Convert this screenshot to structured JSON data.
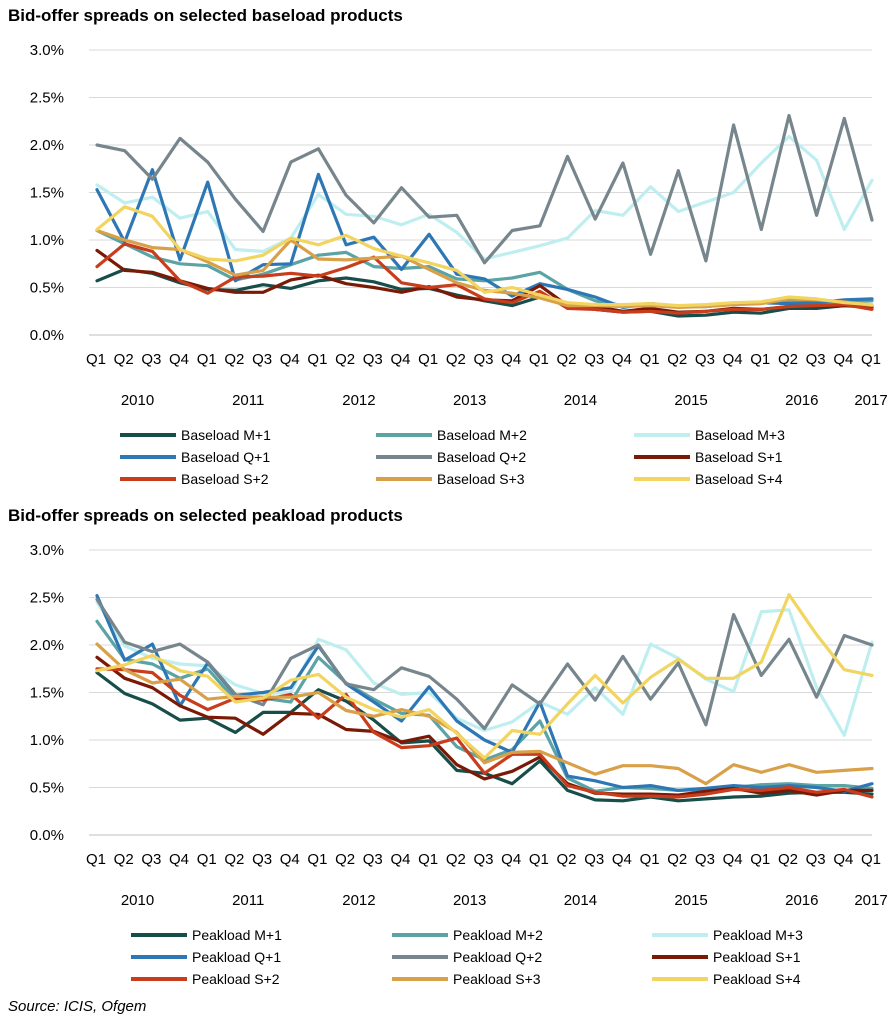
{
  "colors": {
    "M+1": "#174e4a",
    "M+2": "#5ba3a4",
    "M+3": "#bfeef0",
    "Q+1": "#2e77b5",
    "Q+2": "#76868c",
    "S+1": "#7a1a06",
    "S+2": "#c83d1c",
    "S+3": "#d9a04a",
    "S+4": "#f2d460",
    "grid": "#d9d9d9"
  },
  "source": "Source: ICIS, Ofgem",
  "chart_data": [
    {
      "type": "line",
      "title": "Bid-offer spreads on selected baseload products",
      "x_quarters": [
        "Q1",
        "Q2",
        "Q3",
        "Q4",
        "Q1",
        "Q2",
        "Q3",
        "Q4",
        "Q1",
        "Q2",
        "Q3",
        "Q4",
        "Q1",
        "Q2",
        "Q3",
        "Q4",
        "Q1",
        "Q2",
        "Q3",
        "Q4",
        "Q1",
        "Q2",
        "Q3",
        "Q4",
        "Q1",
        "Q2",
        "Q3",
        "Q4",
        "Q1"
      ],
      "x_years": [
        {
          "label": "2010",
          "at": 1.5
        },
        {
          "label": "2011",
          "at": 5.5
        },
        {
          "label": "2012",
          "at": 9.5
        },
        {
          "label": "2013",
          "at": 13.5
        },
        {
          "label": "2014",
          "at": 17.5
        },
        {
          "label": "2015",
          "at": 21.5
        },
        {
          "label": "2016",
          "at": 25.5
        },
        {
          "label": "2017",
          "at": 28
        }
      ],
      "y_ticks": [
        "0.0%",
        "0.5%",
        "1.0%",
        "1.5%",
        "2.0%",
        "2.5%",
        "3.0%"
      ],
      "ylim": [
        0,
        3
      ],
      "grid": true,
      "legend_position": "bottom",
      "series": [
        {
          "name": "Baseload M+1",
          "key": "M+1",
          "values": [
            0.0057,
            0.0069,
            0.0065,
            0.0055,
            0.0048,
            0.0047,
            0.0053,
            0.0049,
            0.0057,
            0.006,
            0.0056,
            0.0048,
            0.0049,
            0.0042,
            0.0036,
            0.0031,
            0.004,
            0.0032,
            0.0027,
            0.0024,
            0.0025,
            0.002,
            0.0021,
            0.0024,
            0.0023,
            0.0028,
            0.0028,
            0.0031,
            0.0031
          ]
        },
        {
          "name": "Baseload M+2",
          "key": "M+2",
          "values": [
            0.011,
            0.0096,
            0.0082,
            0.0075,
            0.0073,
            0.0058,
            0.0064,
            0.0074,
            0.0084,
            0.0087,
            0.0072,
            0.007,
            0.0072,
            0.0059,
            0.0057,
            0.006,
            0.0066,
            0.0048,
            0.0036,
            0.0031,
            0.0033,
            0.003,
            0.003,
            0.0033,
            0.0034,
            0.0035,
            0.0034,
            0.0035,
            0.0036
          ]
        },
        {
          "name": "Baseload M+3",
          "key": "M+3",
          "values": [
            0.0158,
            0.0139,
            0.0145,
            0.0123,
            0.013,
            0.009,
            0.0088,
            0.0102,
            0.0148,
            0.0127,
            0.0125,
            0.0116,
            0.0127,
            0.0108,
            0.008,
            0.0087,
            0.0094,
            0.0102,
            0.0131,
            0.0126,
            0.0156,
            0.013,
            0.014,
            0.015,
            0.0181,
            0.0209,
            0.0184,
            0.0111,
            0.0163
          ]
        },
        {
          "name": "Baseload Q+1",
          "key": "Q+1",
          "values": [
            0.0153,
            0.0098,
            0.0174,
            0.0079,
            0.0161,
            0.0057,
            0.0074,
            0.0075,
            0.0169,
            0.0095,
            0.0103,
            0.0069,
            0.0106,
            0.0064,
            0.0059,
            0.0041,
            0.0054,
            0.0048,
            0.004,
            0.0029,
            0.0033,
            0.003,
            0.003,
            0.0033,
            0.0034,
            0.0033,
            0.0034,
            0.0037,
            0.0038
          ]
        },
        {
          "name": "Baseload Q+2",
          "key": "Q+2",
          "values": [
            0.02,
            0.0194,
            0.0164,
            0.0207,
            0.0182,
            0.0143,
            0.0109,
            0.0182,
            0.0196,
            0.0147,
            0.0118,
            0.0155,
            0.0124,
            0.0126,
            0.0076,
            0.011,
            0.0115,
            0.0188,
            0.0122,
            0.0181,
            0.0085,
            0.0173,
            0.0078,
            0.0221,
            0.0111,
            0.0231,
            0.0126,
            0.0228,
            0.0121
          ]
        },
        {
          "name": "Baseload S+1",
          "key": "S+1",
          "values": [
            0.0089,
            0.0068,
            0.0066,
            0.0057,
            0.0049,
            0.0045,
            0.0045,
            0.0058,
            0.0063,
            0.0054,
            0.005,
            0.0045,
            0.0051,
            0.004,
            0.0037,
            0.0036,
            0.0052,
            0.0031,
            0.003,
            0.0025,
            0.0028,
            0.0024,
            0.0025,
            0.0028,
            0.0027,
            0.003,
            0.003,
            0.0031,
            0.0029
          ]
        },
        {
          "name": "Baseload S+2",
          "key": "S+2",
          "values": [
            0.0072,
            0.0096,
            0.0088,
            0.0057,
            0.0044,
            0.0061,
            0.0062,
            0.0065,
            0.0062,
            0.0071,
            0.0082,
            0.0055,
            0.005,
            0.0053,
            0.0038,
            0.0034,
            0.0046,
            0.0028,
            0.0027,
            0.0024,
            0.0025,
            0.0023,
            0.0025,
            0.0027,
            0.0027,
            0.003,
            0.0031,
            0.0032,
            0.0027
          ]
        },
        {
          "name": "Baseload S+3",
          "key": "S+3",
          "values": [
            0.011,
            0.01,
            0.0092,
            0.009,
            0.0077,
            0.0063,
            0.0068,
            0.01,
            0.008,
            0.0079,
            0.0081,
            0.0083,
            0.0069,
            0.0055,
            0.0047,
            0.0044,
            0.0039,
            0.0031,
            0.0031,
            0.003,
            0.0031,
            0.0029,
            0.003,
            0.0032,
            0.0033,
            0.0038,
            0.0037,
            0.0035,
            0.0031
          ]
        },
        {
          "name": "Baseload S+4",
          "key": "S+4",
          "values": [
            0.0111,
            0.0135,
            0.0125,
            0.009,
            0.008,
            0.0078,
            0.0084,
            0.0102,
            0.0095,
            0.0105,
            0.0091,
            0.0083,
            0.0076,
            0.0068,
            0.0045,
            0.005,
            0.0042,
            0.0034,
            0.0032,
            0.0032,
            0.0033,
            0.0031,
            0.0032,
            0.0034,
            0.0035,
            0.004,
            0.0038,
            0.0034,
            0.0032
          ]
        }
      ]
    },
    {
      "type": "line",
      "title": "Bid-offer spreads on selected peakload products",
      "x_quarters": [
        "Q1",
        "Q2",
        "Q3",
        "Q4",
        "Q1",
        "Q2",
        "Q3",
        "Q4",
        "Q1",
        "Q2",
        "Q3",
        "Q4",
        "Q1",
        "Q2",
        "Q3",
        "Q4",
        "Q1",
        "Q2",
        "Q3",
        "Q4",
        "Q1",
        "Q2",
        "Q3",
        "Q4",
        "Q1",
        "Q2",
        "Q3",
        "Q4",
        "Q1"
      ],
      "x_years": [
        {
          "label": "2010",
          "at": 1.5
        },
        {
          "label": "2011",
          "at": 5.5
        },
        {
          "label": "2012",
          "at": 9.5
        },
        {
          "label": "2013",
          "at": 13.5
        },
        {
          "label": "2014",
          "at": 17.5
        },
        {
          "label": "2015",
          "at": 21.5
        },
        {
          "label": "2016",
          "at": 25.5
        },
        {
          "label": "2017",
          "at": 28
        }
      ],
      "y_ticks": [
        "0.0%",
        "0.5%",
        "1.0%",
        "1.5%",
        "2.0%",
        "2.5%",
        "3.0%"
      ],
      "ylim": [
        0,
        3
      ],
      "grid": true,
      "legend_position": "bottom",
      "series": [
        {
          "name": "Peakload M+1",
          "key": "M+1",
          "values": [
            0.0171,
            0.0149,
            0.0138,
            0.0121,
            0.0123,
            0.0108,
            0.0129,
            0.0129,
            0.0153,
            0.0141,
            0.0121,
            0.0097,
            0.0099,
            0.0068,
            0.0065,
            0.0054,
            0.0078,
            0.0047,
            0.0037,
            0.0036,
            0.004,
            0.0036,
            0.0038,
            0.004,
            0.0041,
            0.0044,
            0.0045,
            0.0045,
            0.0043
          ]
        },
        {
          "name": "Peakload M+2",
          "key": "M+2",
          "values": [
            0.0225,
            0.0185,
            0.018,
            0.0165,
            0.0175,
            0.0142,
            0.0144,
            0.014,
            0.0187,
            0.016,
            0.0143,
            0.0128,
            0.0126,
            0.0093,
            0.0079,
            0.009,
            0.012,
            0.006,
            0.0046,
            0.005,
            0.0049,
            0.0047,
            0.0048,
            0.005,
            0.0053,
            0.0054,
            0.0052,
            0.0052,
            0.0049
          ]
        },
        {
          "name": "Peakload M+3",
          "key": "M+3",
          "values": [
            0.0245,
            0.0199,
            0.0186,
            0.018,
            0.0178,
            0.0158,
            0.0149,
            0.015,
            0.0206,
            0.0195,
            0.016,
            0.0148,
            0.015,
            0.0123,
            0.011,
            0.0119,
            0.014,
            0.0127,
            0.0155,
            0.0127,
            0.0201,
            0.0186,
            0.0164,
            0.0151,
            0.0235,
            0.0237,
            0.0155,
            0.0105,
            0.0203
          ]
        },
        {
          "name": "Peakload Q+1",
          "key": "Q+1",
          "values": [
            0.0252,
            0.0184,
            0.0201,
            0.0136,
            0.0181,
            0.0147,
            0.015,
            0.0155,
            0.0199,
            0.0159,
            0.014,
            0.012,
            0.0156,
            0.012,
            0.01,
            0.0087,
            0.014,
            0.0062,
            0.0057,
            0.005,
            0.0052,
            0.0047,
            0.0049,
            0.0052,
            0.005,
            0.0052,
            0.005,
            0.0046,
            0.0054
          ]
        },
        {
          "name": "Peakload Q+2",
          "key": "Q+2",
          "values": [
            0.0248,
            0.0203,
            0.0193,
            0.0201,
            0.0182,
            0.0148,
            0.0137,
            0.0186,
            0.02,
            0.0159,
            0.0153,
            0.0176,
            0.0167,
            0.0143,
            0.0112,
            0.0158,
            0.0138,
            0.018,
            0.0142,
            0.0188,
            0.0143,
            0.0181,
            0.0116,
            0.0232,
            0.0168,
            0.0206,
            0.0145,
            0.021,
            0.02
          ]
        },
        {
          "name": "Peakload S+1",
          "key": "S+1",
          "values": [
            0.0187,
            0.0165,
            0.0155,
            0.0136,
            0.0124,
            0.0123,
            0.0106,
            0.0128,
            0.0127,
            0.0111,
            0.0109,
            0.0098,
            0.0104,
            0.0074,
            0.0059,
            0.0067,
            0.0082,
            0.0054,
            0.0044,
            0.0043,
            0.0043,
            0.0042,
            0.0046,
            0.0049,
            0.0044,
            0.0047,
            0.0042,
            0.0047,
            0.0047
          ]
        },
        {
          "name": "Peakload S+2",
          "key": "S+2",
          "values": [
            0.0175,
            0.0174,
            0.0171,
            0.0147,
            0.0132,
            0.0144,
            0.0142,
            0.0148,
            0.0123,
            0.0148,
            0.0108,
            0.0092,
            0.0094,
            0.0102,
            0.0065,
            0.0085,
            0.0085,
            0.0052,
            0.0045,
            0.0041,
            0.0041,
            0.004,
            0.0043,
            0.0048,
            0.0047,
            0.005,
            0.0045,
            0.0048,
            0.004
          ]
        },
        {
          "name": "Peakload S+3",
          "key": "S+3",
          "values": [
            0.0201,
            0.0174,
            0.016,
            0.0164,
            0.0143,
            0.0146,
            0.0145,
            0.0145,
            0.015,
            0.0131,
            0.0125,
            0.0132,
            0.0125,
            0.0108,
            0.0076,
            0.0087,
            0.0088,
            0.0076,
            0.0064,
            0.0073,
            0.0073,
            0.007,
            0.0054,
            0.0074,
            0.0066,
            0.0074,
            0.0066,
            0.0068,
            0.007
          ]
        },
        {
          "name": "Peakload S+4",
          "key": "S+4",
          "values": [
            0.0173,
            0.0179,
            0.0189,
            0.0173,
            0.0167,
            0.014,
            0.0144,
            0.0163,
            0.0169,
            0.0145,
            0.0132,
            0.0124,
            0.0132,
            0.0107,
            0.0081,
            0.011,
            0.0106,
            0.0138,
            0.0168,
            0.0139,
            0.0166,
            0.0185,
            0.0165,
            0.0165,
            0.0182,
            0.0253,
            0.0211,
            0.0174,
            0.0168
          ]
        }
      ]
    }
  ]
}
